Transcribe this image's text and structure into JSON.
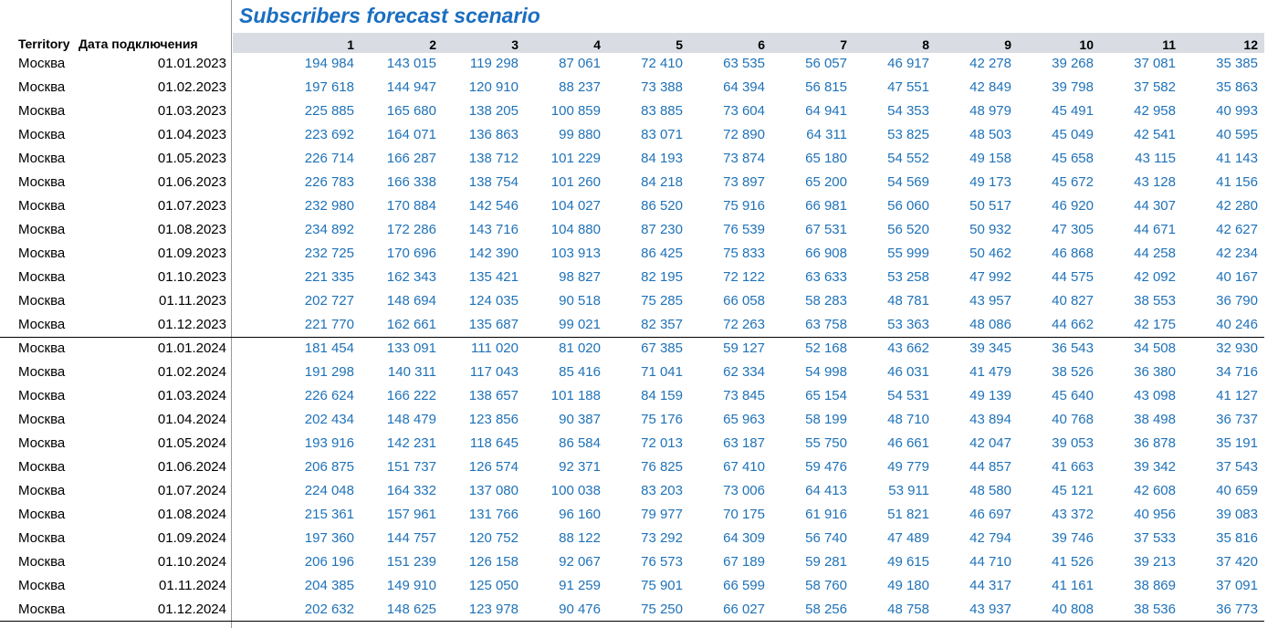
{
  "title": "Subscribers forecast scenario",
  "table": {
    "header": [
      "Territory",
      "Дата подключения",
      "1",
      "2",
      "3",
      "4",
      "5",
      "6",
      "7",
      "8",
      "9",
      "10",
      "11",
      "12"
    ],
    "rows": [
      [
        "Москва",
        "01.01.2023",
        "194 984",
        "143 015",
        "119 298",
        "87 061",
        "72 410",
        "63 535",
        "56 057",
        "46 917",
        "42 278",
        "39 268",
        "37 081",
        "35 385"
      ],
      [
        "Москва",
        "01.02.2023",
        "197 618",
        "144 947",
        "120 910",
        "88 237",
        "73 388",
        "64 394",
        "56 815",
        "47 551",
        "42 849",
        "39 798",
        "37 582",
        "35 863"
      ],
      [
        "Москва",
        "01.03.2023",
        "225 885",
        "165 680",
        "138 205",
        "100 859",
        "83 885",
        "73 604",
        "64 941",
        "54 353",
        "48 979",
        "45 491",
        "42 958",
        "40 993"
      ],
      [
        "Москва",
        "01.04.2023",
        "223 692",
        "164 071",
        "136 863",
        "99 880",
        "83 071",
        "72 890",
        "64 311",
        "53 825",
        "48 503",
        "45 049",
        "42 541",
        "40 595"
      ],
      [
        "Москва",
        "01.05.2023",
        "226 714",
        "166 287",
        "138 712",
        "101 229",
        "84 193",
        "73 874",
        "65 180",
        "54 552",
        "49 158",
        "45 658",
        "43 115",
        "41 143"
      ],
      [
        "Москва",
        "01.06.2023",
        "226 783",
        "166 338",
        "138 754",
        "101 260",
        "84 218",
        "73 897",
        "65 200",
        "54 569",
        "49 173",
        "45 672",
        "43 128",
        "41 156"
      ],
      [
        "Москва",
        "01.07.2023",
        "232 980",
        "170 884",
        "142 546",
        "104 027",
        "86 520",
        "75 916",
        "66 981",
        "56 060",
        "50 517",
        "46 920",
        "44 307",
        "42 280"
      ],
      [
        "Москва",
        "01.08.2023",
        "234 892",
        "172 286",
        "143 716",
        "104 880",
        "87 230",
        "76 539",
        "67 531",
        "56 520",
        "50 932",
        "47 305",
        "44 671",
        "42 627"
      ],
      [
        "Москва",
        "01.09.2023",
        "232 725",
        "170 696",
        "142 390",
        "103 913",
        "86 425",
        "75 833",
        "66 908",
        "55 999",
        "50 462",
        "46 868",
        "44 258",
        "42 234"
      ],
      [
        "Москва",
        "01.10.2023",
        "221 335",
        "162 343",
        "135 421",
        "98 827",
        "82 195",
        "72 122",
        "63 633",
        "53 258",
        "47 992",
        "44 575",
        "42 092",
        "40 167"
      ],
      [
        "Москва",
        "01.11.2023",
        "202 727",
        "148 694",
        "124 035",
        "90 518",
        "75 285",
        "66 058",
        "58 283",
        "48 781",
        "43 957",
        "40 827",
        "38 553",
        "36 790"
      ],
      [
        "Москва",
        "01.12.2023",
        "221 770",
        "162 661",
        "135 687",
        "99 021",
        "82 357",
        "72 263",
        "63 758",
        "53 363",
        "48 086",
        "44 662",
        "42 175",
        "40 246"
      ],
      [
        "Москва",
        "01.01.2024",
        "181 454",
        "133 091",
        "111 020",
        "81 020",
        "67 385",
        "59 127",
        "52 168",
        "43 662",
        "39 345",
        "36 543",
        "34 508",
        "32 930"
      ],
      [
        "Москва",
        "01.02.2024",
        "191 298",
        "140 311",
        "117 043",
        "85 416",
        "71 041",
        "62 334",
        "54 998",
        "46 031",
        "41 479",
        "38 526",
        "36 380",
        "34 716"
      ],
      [
        "Москва",
        "01.03.2024",
        "226 624",
        "166 222",
        "138 657",
        "101 188",
        "84 159",
        "73 845",
        "65 154",
        "54 531",
        "49 139",
        "45 640",
        "43 098",
        "41 127"
      ],
      [
        "Москва",
        "01.04.2024",
        "202 434",
        "148 479",
        "123 856",
        "90 387",
        "75 176",
        "65 963",
        "58 199",
        "48 710",
        "43 894",
        "40 768",
        "38 498",
        "36 737"
      ],
      [
        "Москва",
        "01.05.2024",
        "193 916",
        "142 231",
        "118 645",
        "86 584",
        "72 013",
        "63 187",
        "55 750",
        "46 661",
        "42 047",
        "39 053",
        "36 878",
        "35 191"
      ],
      [
        "Москва",
        "01.06.2024",
        "206 875",
        "151 737",
        "126 574",
        "92 371",
        "76 825",
        "67 410",
        "59 476",
        "49 779",
        "44 857",
        "41 663",
        "39 342",
        "37 543"
      ],
      [
        "Москва",
        "01.07.2024",
        "224 048",
        "164 332",
        "137 080",
        "100 038",
        "83 203",
        "73 006",
        "64 413",
        "53 911",
        "48 580",
        "45 121",
        "42 608",
        "40 659"
      ],
      [
        "Москва",
        "01.08.2024",
        "215 361",
        "157 961",
        "131 766",
        "96 160",
        "79 977",
        "70 175",
        "61 916",
        "51 821",
        "46 697",
        "43 372",
        "40 956",
        "39 083"
      ],
      [
        "Москва",
        "01.09.2024",
        "197 360",
        "144 757",
        "120 752",
        "88 122",
        "73 292",
        "64 309",
        "56 740",
        "47 489",
        "42 794",
        "39 746",
        "37 533",
        "35 816"
      ],
      [
        "Москва",
        "01.10.2024",
        "206 196",
        "151 239",
        "126 158",
        "92 067",
        "76 573",
        "67 189",
        "59 281",
        "49 615",
        "44 710",
        "41 526",
        "39 213",
        "37 420"
      ],
      [
        "Москва",
        "01.11.2024",
        "204 385",
        "149 910",
        "125 050",
        "91 259",
        "75 901",
        "66 599",
        "58 760",
        "49 180",
        "44 317",
        "41 161",
        "38 869",
        "37 091"
      ],
      [
        "Москва",
        "01.12.2024",
        "202 632",
        "148 625",
        "123 978",
        "90 476",
        "75 250",
        "66 027",
        "58 256",
        "48 758",
        "43 937",
        "40 808",
        "38 536",
        "36 773"
      ]
    ]
  }
}
